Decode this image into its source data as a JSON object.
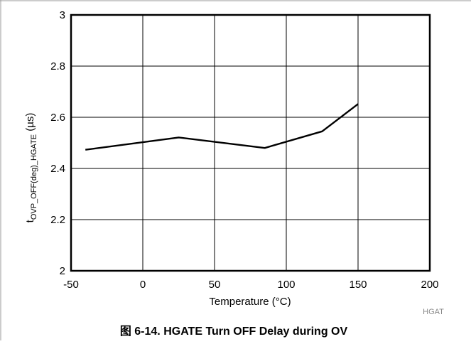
{
  "chart_data": {
    "type": "line",
    "x": [
      -40,
      25,
      85,
      125,
      150
    ],
    "series": [
      {
        "values": [
          2.473,
          2.521,
          2.48,
          2.545,
          2.652
        ]
      }
    ],
    "x_ticks": [
      "-50",
      "0",
      "50",
      "100",
      "150",
      "200"
    ],
    "y_ticks": [
      "2",
      "2.2",
      "2.4",
      "2.6",
      "2.8",
      "3"
    ],
    "xlim": [
      -50,
      200
    ],
    "ylim": [
      2,
      3
    ],
    "xlabel": "Temperature (°C)",
    "ylabel": {
      "main": "t",
      "subscript": "OVP_OFF(deg)_HGATE",
      "unit": " (µs)"
    },
    "grid": true,
    "line_color": "#000000"
  },
  "figure": {
    "caption": "图 6-14. HGATE Turn OFF Delay during OV",
    "watermark": "HGAT"
  }
}
